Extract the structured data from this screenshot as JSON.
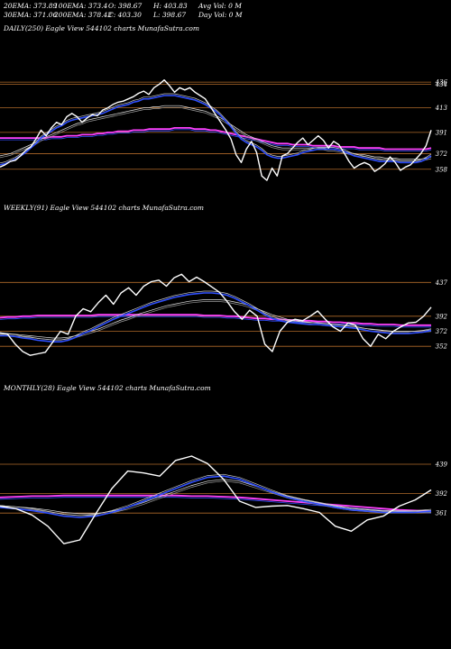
{
  "header": {
    "ema20": "20EMA: 373.89",
    "ema100": "100EMA: 373.4",
    "open": "O: 398.67",
    "high": "H: 403.83",
    "avgvol": "Avg Vol: 0  M",
    "ema30": "30EMA: 371.06",
    "ema200": "200EMA: 378.42",
    "close": "C: 403.30",
    "low": "L: 398.67",
    "dayvol": "Day Vol: 0  M"
  },
  "colors": {
    "background": "#000000",
    "price": "#ffffff",
    "ma_blue": "#3050ff",
    "ma_magenta": "#ff40ff",
    "level_line": "#b06a2a"
  },
  "chart_data": [
    {
      "type": "line",
      "title": "DAILY(250) Eagle  View  544102  charts MunafaSutra.com",
      "levels": [
        436,
        434,
        413,
        391,
        372,
        358
      ],
      "level_labels": [
        "436",
        "434",
        "413",
        "391",
        "372",
        "358"
      ],
      "ylim": [
        336,
        445
      ],
      "series": [
        {
          "role": "price",
          "values": [
            360,
            362,
            365,
            366,
            370,
            375,
            378,
            385,
            393,
            388,
            395,
            400,
            398,
            405,
            408,
            405,
            400,
            404,
            407,
            406,
            411,
            413,
            416,
            418,
            419,
            421,
            423,
            426,
            428,
            425,
            431,
            434,
            438,
            433,
            427,
            431,
            429,
            431,
            427,
            424,
            421,
            414,
            407,
            400,
            393,
            385,
            371,
            364,
            376,
            383,
            373,
            352,
            348,
            359,
            352,
            370,
            372,
            377,
            382,
            386,
            380,
            384,
            388,
            384,
            377,
            383,
            380,
            373,
            365,
            359,
            362,
            364,
            362,
            356,
            359,
            363,
            369,
            364,
            357,
            360,
            362,
            367,
            372,
            379,
            393
          ]
        },
        {
          "role": "ma_short",
          "values": [
            362,
            363,
            365,
            367,
            370,
            373,
            377,
            381,
            386,
            389,
            392,
            395,
            397,
            400,
            402,
            403,
            404,
            405,
            406,
            407,
            408,
            410,
            412,
            414,
            415,
            416,
            418,
            419,
            421,
            421,
            422,
            423,
            424,
            424,
            424,
            423,
            422,
            421,
            420,
            418,
            416,
            413,
            410,
            406,
            401,
            396,
            390,
            385,
            382,
            380,
            378,
            375,
            371,
            369,
            368,
            368,
            369,
            370,
            371,
            373,
            374,
            375,
            376,
            376,
            376,
            376,
            375,
            374,
            372,
            370,
            369,
            368,
            367,
            366,
            365,
            365,
            365,
            365,
            364,
            364,
            364,
            364,
            365,
            367,
            370
          ]
        },
        {
          "role": "ma_mid",
          "values": [
            370,
            371,
            372,
            374,
            376,
            378,
            380,
            382,
            385,
            387,
            389,
            391,
            393,
            395,
            397,
            399,
            400,
            402,
            403,
            404,
            405,
            406,
            407,
            408,
            409,
            410,
            411,
            412,
            413,
            413,
            414,
            414,
            415,
            415,
            415,
            415,
            414,
            413,
            412,
            411,
            410,
            408,
            406,
            404,
            401,
            398,
            395,
            392,
            389,
            387,
            385,
            383,
            381,
            379,
            378,
            377,
            377,
            377,
            377,
            377,
            377,
            377,
            377,
            377,
            376,
            376,
            375,
            374,
            373,
            372,
            371,
            371,
            370,
            369,
            369,
            368,
            368,
            368,
            367,
            367,
            367,
            367,
            367,
            368,
            369
          ]
        },
        {
          "role": "ma_long",
          "values": [
            386,
            386,
            386,
            386,
            386,
            386,
            386,
            386,
            386,
            386,
            387,
            387,
            387,
            388,
            388,
            388,
            389,
            389,
            389,
            390,
            390,
            391,
            391,
            392,
            392,
            392,
            393,
            393,
            393,
            394,
            394,
            394,
            394,
            394,
            395,
            395,
            395,
            395,
            394,
            394,
            394,
            393,
            393,
            392,
            391,
            390,
            389,
            388,
            387,
            386,
            385,
            384,
            383,
            382,
            381,
            381,
            381,
            380,
            380,
            380,
            380,
            379,
            379,
            379,
            379,
            379,
            378,
            378,
            378,
            378,
            377,
            377,
            377,
            377,
            377,
            376,
            376,
            376,
            376,
            376,
            376,
            376,
            376,
            376,
            377
          ]
        }
      ]
    },
    {
      "type": "line",
      "title": "WEEKLY(91) Eagle  View  544102  charts MunafaSutra.com",
      "levels": [
        437,
        392,
        372,
        352
      ],
      "level_labels": [
        "437",
        "392",
        "372",
        "352"
      ],
      "ylim": [
        315,
        465
      ],
      "series": [
        {
          "role": "price",
          "values": [
            370,
            368,
            355,
            345,
            340,
            342,
            344,
            358,
            372,
            368,
            392,
            402,
            398,
            410,
            420,
            408,
            423,
            430,
            420,
            432,
            438,
            440,
            432,
            443,
            448,
            438,
            444,
            438,
            431,
            424,
            412,
            398,
            388,
            400,
            392,
            355,
            345,
            372,
            384,
            388,
            386,
            392,
            399,
            388,
            378,
            372,
            383,
            380,
            362,
            352,
            368,
            362,
            372,
            378,
            383,
            384,
            392,
            404
          ]
        },
        {
          "role": "ma_short",
          "values": [
            366,
            366,
            365,
            363,
            362,
            360,
            359,
            358,
            358,
            360,
            364,
            369,
            373,
            378,
            383,
            388,
            392,
            396,
            400,
            404,
            408,
            411,
            414,
            417,
            419,
            421,
            422,
            423,
            423,
            422,
            420,
            416,
            411,
            406,
            400,
            394,
            389,
            386,
            384,
            383,
            382,
            381,
            381,
            380,
            379,
            378,
            377,
            376,
            374,
            372,
            371,
            370,
            369,
            369,
            369,
            370,
            371,
            373
          ]
        },
        {
          "role": "ma_mid",
          "values": [
            370,
            369,
            368,
            367,
            366,
            365,
            364,
            363,
            363,
            364,
            366,
            369,
            372,
            375,
            379,
            383,
            387,
            390,
            394,
            397,
            400,
            403,
            406,
            408,
            410,
            412,
            413,
            414,
            414,
            414,
            413,
            411,
            409,
            406,
            402,
            398,
            394,
            391,
            388,
            386,
            385,
            384,
            383,
            382,
            381,
            380,
            379,
            378,
            376,
            375,
            374,
            373,
            372,
            372,
            372,
            372,
            373,
            374
          ]
        },
        {
          "role": "ma_long",
          "values": [
            390,
            391,
            391,
            392,
            392,
            393,
            393,
            393,
            393,
            393,
            393,
            393,
            393,
            394,
            394,
            394,
            394,
            394,
            394,
            394,
            394,
            394,
            394,
            394,
            394,
            394,
            394,
            393,
            393,
            393,
            392,
            392,
            391,
            390,
            389,
            389,
            388,
            388,
            387,
            387,
            386,
            386,
            385,
            385,
            384,
            384,
            383,
            383,
            382,
            382,
            381,
            381,
            381,
            380,
            380,
            380,
            380,
            380
          ]
        }
      ]
    },
    {
      "type": "line",
      "title": "MONTHLY(28) Eagle  View  544102  charts MunafaSutra.com",
      "levels": [
        439,
        392,
        361
      ],
      "level_labels": [
        "439",
        "392",
        "361"
      ],
      "ylim": [
        295,
        475
      ],
      "series": [
        {
          "role": "price",
          "values": [
            372,
            368,
            358,
            340,
            312,
            318,
            360,
            400,
            428,
            425,
            420,
            445,
            452,
            440,
            415,
            380,
            370,
            372,
            373,
            368,
            362,
            340,
            332,
            350,
            356,
            372,
            382,
            398
          ]
        },
        {
          "role": "ma_short",
          "values": [
            370,
            368,
            365,
            361,
            356,
            354,
            356,
            362,
            370,
            380,
            390,
            400,
            410,
            418,
            420,
            415,
            405,
            395,
            386,
            380,
            375,
            370,
            366,
            364,
            362,
            362,
            362,
            364
          ]
        },
        {
          "role": "ma_mid",
          "values": [
            373,
            371,
            369,
            366,
            362,
            360,
            360,
            364,
            370,
            378,
            387,
            396,
            405,
            412,
            415,
            412,
            404,
            396,
            388,
            382,
            377,
            372,
            368,
            366,
            364,
            364,
            364,
            365
          ]
        },
        {
          "role": "ma_long",
          "values": [
            386,
            387,
            388,
            388,
            389,
            389,
            389,
            389,
            389,
            389,
            389,
            389,
            388,
            388,
            387,
            386,
            384,
            382,
            380,
            378,
            376,
            374,
            372,
            370,
            368,
            366,
            365,
            364
          ]
        }
      ]
    }
  ]
}
